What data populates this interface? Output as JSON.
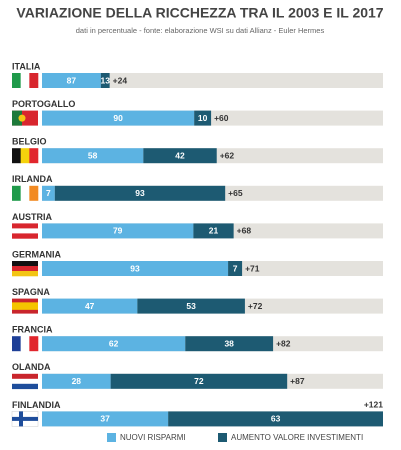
{
  "chart_data": {
    "type": "stacked-bar-horizontal",
    "title": "VARIAZIONE DELLA RICCHEZZA TRA IL 2003 E IL 2017",
    "subtitle": "dati in percentuale - fonte: elaborazione WSI su dati Allianz - Euler Hermes",
    "categories": [
      "ITALIA",
      "PORTOGALLO",
      "BELGIO",
      "IRLANDA",
      "AUSTRIA",
      "GERMANIA",
      "SPAGNA",
      "FRANCIA",
      "OLANDA",
      "FINLANDIA"
    ],
    "series": [
      {
        "name": "NUOVI RISPARMI",
        "color": "#5cb3e2",
        "values": [
          87,
          90,
          58,
          7,
          79,
          93,
          47,
          62,
          28,
          37
        ]
      },
      {
        "name": "AUMENTO VALORE INVESTIMENTI",
        "color": "#1d5a72",
        "values": [
          13,
          10,
          42,
          93,
          21,
          7,
          53,
          38,
          72,
          63
        ]
      }
    ],
    "totals": {
      "values": [
        24,
        60,
        62,
        65,
        68,
        71,
        72,
        82,
        87,
        121
      ],
      "value_labels": [
        "+24",
        "+60",
        "+62",
        "+65",
        "+68",
        "+71",
        "+72",
        "+82",
        "+87",
        "+121"
      ]
    },
    "xlim": [
      0,
      121
    ]
  }
}
